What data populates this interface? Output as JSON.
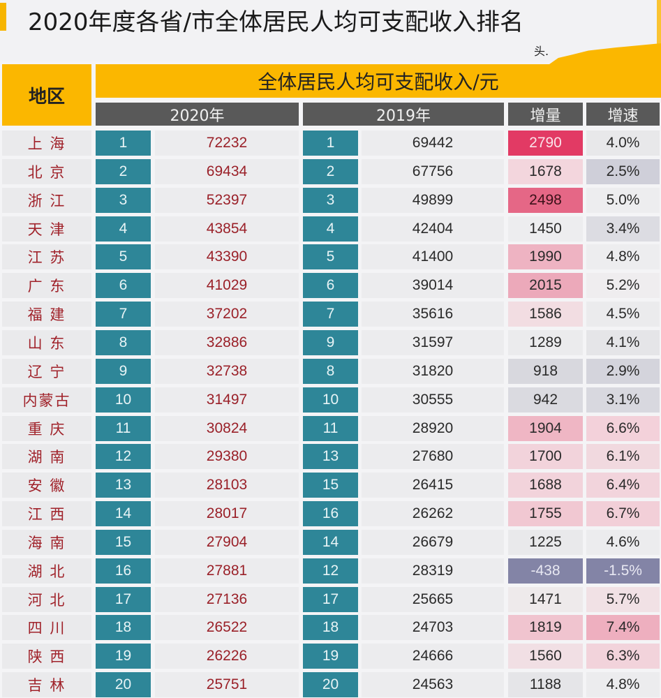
{
  "header": {
    "title": "2020年度各省/市全体居民人均可支配收入排名",
    "watermark": "头.",
    "region_label": "地区",
    "main_label": "全体居民人均可支配收入/元",
    "col_2020": "2020年",
    "col_2019": "2019年",
    "col_increase": "增量",
    "col_rate": "增速"
  },
  "colors": {
    "accent_yellow": "#fbb700",
    "subheader_gray": "#595959",
    "rank_teal": "#2e8698",
    "region_text": "#a0222a",
    "value2020_text": "#9a2028"
  },
  "rows": [
    {
      "region": "上 海",
      "rank2020": "1",
      "val2020": "72232",
      "rank2019": "1",
      "val2019": "69442",
      "inc": "2790",
      "rate": "4.0%",
      "inc_bg": "#e23a64",
      "inc_fg": "#fbe3ea",
      "rate_bg": "#e8e8ea",
      "rate_fg": "#2a2a2a"
    },
    {
      "region": "北 京",
      "rank2020": "2",
      "val2020": "69434",
      "rank2019": "2",
      "val2019": "67756",
      "inc": "1678",
      "rate": "2.5%",
      "inc_bg": "#f3d6dd",
      "inc_fg": "#2a2a2a",
      "rate_bg": "#cfcfd9",
      "rate_fg": "#2a2a2a"
    },
    {
      "region": "浙 江",
      "rank2020": "3",
      "val2020": "52397",
      "rank2019": "3",
      "val2019": "49899",
      "inc": "2498",
      "rate": "5.0%",
      "inc_bg": "#e56786",
      "inc_fg": "#3a1018",
      "rate_bg": "#ededef",
      "rate_fg": "#2a2a2a"
    },
    {
      "region": "天 津",
      "rank2020": "4",
      "val2020": "43854",
      "rank2019": "4",
      "val2019": "42404",
      "inc": "1450",
      "rate": "3.4%",
      "inc_bg": "#ededef",
      "inc_fg": "#2a2a2a",
      "rate_bg": "#dcdce2",
      "rate_fg": "#2a2a2a"
    },
    {
      "region": "江 苏",
      "rank2020": "5",
      "val2020": "43390",
      "rank2019": "5",
      "val2019": "41400",
      "inc": "1990",
      "rate": "4.8%",
      "inc_bg": "#eeb3c2",
      "inc_fg": "#2a2a2a",
      "rate_bg": "#ededef",
      "rate_fg": "#2a2a2a"
    },
    {
      "region": "广 东",
      "rank2020": "6",
      "val2020": "41029",
      "rank2019": "6",
      "val2019": "39014",
      "inc": "2015",
      "rate": "5.2%",
      "inc_bg": "#eca9ba",
      "inc_fg": "#2a2a2a",
      "rate_bg": "#efedef",
      "rate_fg": "#2a2a2a"
    },
    {
      "region": "福 建",
      "rank2020": "7",
      "val2020": "37202",
      "rank2019": "7",
      "val2019": "35616",
      "inc": "1586",
      "rate": "4.5%",
      "inc_bg": "#f2dde2",
      "inc_fg": "#2a2a2a",
      "rate_bg": "#ebebed",
      "rate_fg": "#2a2a2a"
    },
    {
      "region": "山 东",
      "rank2020": "8",
      "val2020": "32886",
      "rank2019": "9",
      "val2019": "31597",
      "inc": "1289",
      "rate": "4.1%",
      "inc_bg": "#ebebed",
      "inc_fg": "#2a2a2a",
      "rate_bg": "#e5e5e8",
      "rate_fg": "#2a2a2a"
    },
    {
      "region": "辽 宁",
      "rank2020": "9",
      "val2020": "32738",
      "rank2019": "8",
      "val2019": "31820",
      "inc": "918",
      "rate": "2.9%",
      "inc_bg": "#d8d8de",
      "inc_fg": "#2a2a2a",
      "rate_bg": "#d4d4dc",
      "rate_fg": "#2a2a2a"
    },
    {
      "region": "内蒙古",
      "rank2020": "10",
      "val2020": "31497",
      "rank2019": "10",
      "val2019": "30555",
      "inc": "942",
      "rate": "3.1%",
      "inc_bg": "#dadae0",
      "inc_fg": "#2a2a2a",
      "rate_bg": "#d8d8df",
      "rate_fg": "#2a2a2a"
    },
    {
      "region": "重 庆",
      "rank2020": "11",
      "val2020": "30824",
      "rank2019": "11",
      "val2019": "28920",
      "inc": "1904",
      "rate": "6.6%",
      "inc_bg": "#efb6c4",
      "inc_fg": "#2a2a2a",
      "rate_bg": "#f3d1da",
      "rate_fg": "#2a2a2a"
    },
    {
      "region": "湖 南",
      "rank2020": "12",
      "val2020": "29380",
      "rank2019": "13",
      "val2019": "27680",
      "inc": "1700",
      "rate": "6.1%",
      "inc_bg": "#f2d3db",
      "inc_fg": "#2a2a2a",
      "rate_bg": "#f1d9df",
      "rate_fg": "#2a2a2a"
    },
    {
      "region": "安 徽",
      "rank2020": "13",
      "val2020": "28103",
      "rank2019": "15",
      "val2019": "26415",
      "inc": "1688",
      "rate": "6.4%",
      "inc_bg": "#f2d3db",
      "inc_fg": "#2a2a2a",
      "rate_bg": "#f2d4dc",
      "rate_fg": "#2a2a2a"
    },
    {
      "region": "江 西",
      "rank2020": "14",
      "val2020": "28017",
      "rank2019": "16",
      "val2019": "26262",
      "inc": "1755",
      "rate": "6.7%",
      "inc_bg": "#f1c8d2",
      "inc_fg": "#2a2a2a",
      "rate_bg": "#f2cfd8",
      "rate_fg": "#2a2a2a"
    },
    {
      "region": "海 南",
      "rank2020": "15",
      "val2020": "27904",
      "rank2019": "14",
      "val2019": "26679",
      "inc": "1225",
      "rate": "4.6%",
      "inc_bg": "#e9e9eb",
      "inc_fg": "#2a2a2a",
      "rate_bg": "#ececee",
      "rate_fg": "#2a2a2a"
    },
    {
      "region": "湖 北",
      "rank2020": "16",
      "val2020": "27881",
      "rank2019": "12",
      "val2019": "28319",
      "inc": "-438",
      "rate": "-1.5%",
      "inc_bg": "#8384a6",
      "inc_fg": "#e8e8f2",
      "rate_bg": "#8384a6",
      "rate_fg": "#e8e8f2"
    },
    {
      "region": "河 北",
      "rank2020": "17",
      "val2020": "27136",
      "rank2019": "17",
      "val2019": "25665",
      "inc": "1471",
      "rate": "5.7%",
      "inc_bg": "#eeeaeb",
      "inc_fg": "#2a2a2a",
      "rate_bg": "#f1e1e5",
      "rate_fg": "#2a2a2a"
    },
    {
      "region": "四 川",
      "rank2020": "18",
      "val2020": "26522",
      "rank2019": "18",
      "val2019": "24703",
      "inc": "1819",
      "rate": "7.4%",
      "inc_bg": "#f0c4cf",
      "inc_fg": "#2a2a2a",
      "rate_bg": "#eeafbf",
      "rate_fg": "#2a2a2a"
    },
    {
      "region": "陕 西",
      "rank2020": "19",
      "val2020": "26226",
      "rank2019": "19",
      "val2019": "24666",
      "inc": "1560",
      "rate": "6.3%",
      "inc_bg": "#f1dfe4",
      "inc_fg": "#2a2a2a",
      "rate_bg": "#f2d3db",
      "rate_fg": "#2a2a2a"
    },
    {
      "region": "吉 林",
      "rank2020": "20",
      "val2020": "25751",
      "rank2019": "20",
      "val2019": "24563",
      "inc": "1188",
      "rate": "4.8%",
      "inc_bg": "#e5e5e8",
      "inc_fg": "#2a2a2a",
      "rate_bg": "#ececee",
      "rate_fg": "#2a2a2a"
    }
  ]
}
